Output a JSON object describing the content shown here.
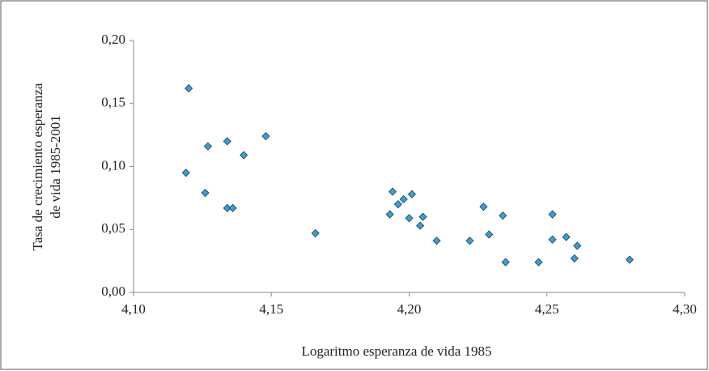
{
  "chart_data": {
    "type": "scatter",
    "xlabel": "Logaritmo esperanza de vida 1985",
    "ylabel": [
      "Tasa de crecimiento esperanza",
      "de vida 1985-2001"
    ],
    "color": "#3d9fd0",
    "xlim": [
      4.1,
      4.3
    ],
    "xticks": [
      {
        "value": 4.1,
        "label": "4,10"
      },
      {
        "value": 4.15,
        "label": "4,15"
      },
      {
        "value": 4.2,
        "label": "4,20"
      },
      {
        "value": 4.25,
        "label": "4,25"
      },
      {
        "value": 4.3,
        "label": "4,30"
      }
    ],
    "ylim": [
      0,
      0.2
    ],
    "yticks": [
      {
        "value": 0,
        "label": "0,00"
      },
      {
        "value": 0.05,
        "label": "0,05"
      },
      {
        "value": 0.1,
        "label": "0,10"
      },
      {
        "value": 0.15,
        "label": "0,15"
      },
      {
        "value": 0.2,
        "label": "0,20"
      }
    ],
    "x": [
      4.12,
      4.119,
      4.126,
      4.127,
      4.134,
      4.14,
      4.148,
      4.134,
      4.136,
      4.166,
      4.194,
      4.193,
      4.196,
      4.198,
      4.201,
      4.2,
      4.205,
      4.204,
      4.21,
      4.222,
      4.227,
      4.229,
      4.234,
      4.235,
      4.247,
      4.252,
      4.252,
      4.257,
      4.261,
      4.26,
      4.28
    ],
    "values": [
      0.162,
      0.095,
      0.079,
      0.116,
      0.12,
      0.109,
      0.124,
      0.067,
      0.067,
      0.047,
      0.08,
      0.062,
      0.07,
      0.074,
      0.078,
      0.059,
      0.06,
      0.053,
      0.041,
      0.041,
      0.068,
      0.046,
      0.061,
      0.024,
      0.024,
      0.062,
      0.042,
      0.044,
      0.037,
      0.027,
      0.026
    ]
  }
}
